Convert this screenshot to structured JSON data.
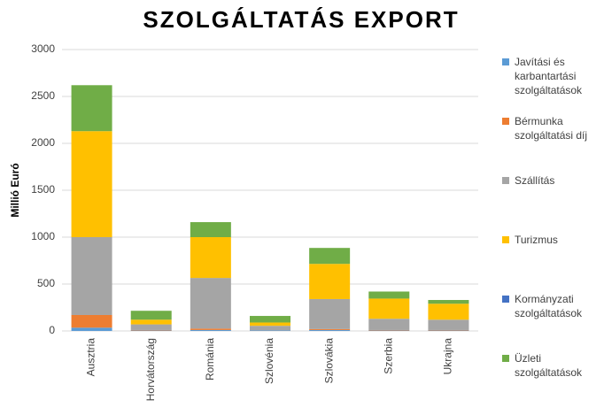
{
  "chart_data": {
    "type": "bar",
    "stacked": true,
    "title": "SZOLGÁLTATÁS EXPORT",
    "y_label": "Millió Euró",
    "categories": [
      "Ausztria",
      "Horvátország",
      "Románia",
      "Szlovénia",
      "Szlovákia",
      "Szerbia",
      "Ukrajna"
    ],
    "series": [
      {
        "name": "Javítási és karbantartási szolgáltatások",
        "color": "#5b9bd5",
        "values": [
          35,
          5,
          10,
          5,
          10,
          5,
          5
        ]
      },
      {
        "name": "Bérmunka szolgáltatási díj",
        "color": "#ed7d31",
        "values": [
          135,
          5,
          15,
          0,
          10,
          5,
          5
        ]
      },
      {
        "name": "Szállítás",
        "color": "#a5a5a5",
        "values": [
          830,
          60,
          540,
          50,
          320,
          120,
          110
        ]
      },
      {
        "name": "Turizmus",
        "color": "#ffc000",
        "values": [
          1130,
          50,
          435,
          35,
          375,
          215,
          170
        ]
      },
      {
        "name": "Kormányzati szolgáltatások",
        "color": "#4472c4",
        "values": [
          0,
          0,
          0,
          0,
          0,
          0,
          0
        ]
      },
      {
        "name": "Üzleti szolgáltatások",
        "color": "#70ad47",
        "values": [
          490,
          95,
          160,
          70,
          170,
          75,
          40
        ]
      }
    ],
    "ylim": [
      0,
      3000
    ],
    "yticks": [
      0,
      500,
      1000,
      1500,
      2000,
      2500,
      3000
    ],
    "grid": true,
    "legend": "right"
  }
}
